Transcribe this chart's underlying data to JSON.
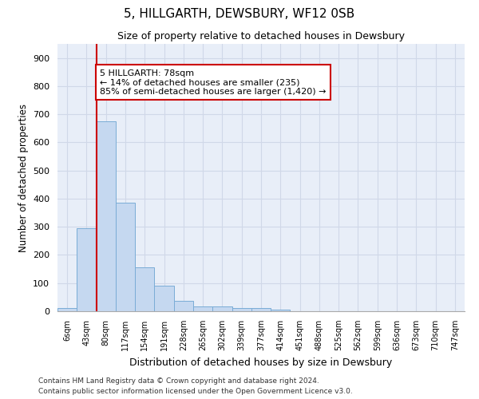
{
  "title": "5, HILLGARTH, DEWSBURY, WF12 0SB",
  "subtitle": "Size of property relative to detached houses in Dewsbury",
  "xlabel": "Distribution of detached houses by size in Dewsbury",
  "ylabel": "Number of detached properties",
  "bar_labels": [
    "6sqm",
    "43sqm",
    "80sqm",
    "117sqm",
    "154sqm",
    "191sqm",
    "228sqm",
    "265sqm",
    "302sqm",
    "339sqm",
    "377sqm",
    "414sqm",
    "451sqm",
    "488sqm",
    "525sqm",
    "562sqm",
    "599sqm",
    "636sqm",
    "673sqm",
    "710sqm",
    "747sqm"
  ],
  "bar_values": [
    10,
    295,
    675,
    385,
    155,
    90,
    38,
    16,
    16,
    10,
    12,
    5,
    0,
    0,
    0,
    0,
    0,
    0,
    0,
    0,
    0
  ],
  "bar_color": "#c5d8f0",
  "bar_edge_color": "#7aacd6",
  "grid_color": "#d0d8e8",
  "background_color": "#e8eef8",
  "ylim": [
    0,
    950
  ],
  "yticks": [
    0,
    100,
    200,
    300,
    400,
    500,
    600,
    700,
    800,
    900
  ],
  "property_line_index": 2,
  "annotation_text_line1": "5 HILLGARTH: 78sqm",
  "annotation_text_line2": "← 14% of detached houses are smaller (235)",
  "annotation_text_line3": "85% of semi-detached houses are larger (1,420) →",
  "annotation_box_color": "#ffffff",
  "annotation_box_edge": "#cc0000",
  "footer_line1": "Contains HM Land Registry data © Crown copyright and database right 2024.",
  "footer_line2": "Contains public sector information licensed under the Open Government Licence v3.0."
}
